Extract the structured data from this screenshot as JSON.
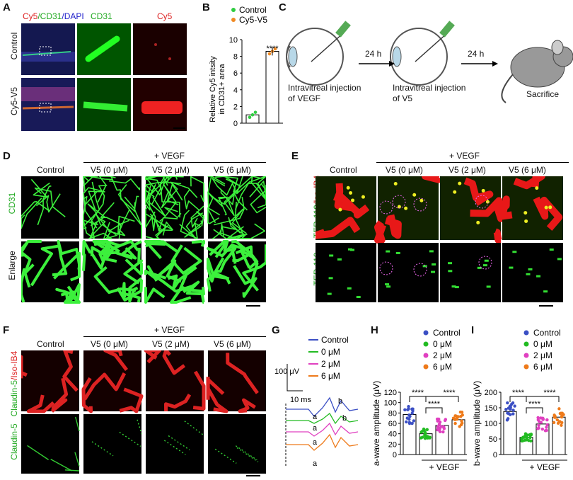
{
  "panelA": {
    "letter": "A",
    "header1": "Cy5",
    "header2": "/CD31",
    "header3": "/DAPI",
    "col2": "CD31",
    "col3": "Cy5",
    "row1": "Control",
    "row2": "Cy5-V5"
  },
  "panelB": {
    "letter": "B",
    "legend": [
      "Control",
      "Cy5-V5"
    ],
    "ylabel": "Relative Cy5 intsity\nin CD31+ area",
    "ylabel1": "Relative Cy5 intsity",
    "ylabel2": "in CD31+ area",
    "sig": "****"
  },
  "panelC": {
    "letter": "C",
    "step1a": "Intravitreal injection",
    "step1b": "of VEGF",
    "step2a": "Intravitreal injection",
    "step2b": "of V5",
    "arrow1": "24 h",
    "arrow2": "24 h",
    "final": "Sacrifice"
  },
  "panelD": {
    "letter": "D",
    "vegf": "+ VEGF",
    "cols": [
      "Control",
      "V5 (0 μM)",
      "V5 (2 μM)",
      "V5 (6 μM)"
    ],
    "row1": "CD31",
    "row2": "Enlarge"
  },
  "panelE": {
    "letter": "E",
    "vegf": "+ VEGF",
    "cols": [
      "Control",
      "V5 (0 μM)",
      "V5 (2 μM)",
      "V5 (6 μM)"
    ],
    "row1a": "TER-119",
    "row1b": "/Iso-IB4",
    "row2": "TER-119"
  },
  "panelF": {
    "letter": "F",
    "vegf": "+ VEGF",
    "cols": [
      "Control",
      "V5 (0 μM)",
      "V5 (2 μM)",
      "V5 (6 μM)"
    ],
    "row1a": "Claudin-5",
    "row1b": "/Iso-IB4",
    "row2": "Claudin-5"
  },
  "panelG": {
    "letter": "G",
    "legend": [
      "Control",
      "0 μM",
      "2 μM",
      "6 μM"
    ],
    "scaleV": "100 μV",
    "scaleT": "10 ms",
    "a": "a",
    "b": "b"
  },
  "panelH": {
    "letter": "H",
    "legend": [
      "Control",
      "0 μM",
      "2 μM",
      "6 μM"
    ],
    "ylabel": "a-wave amplitude (μV)",
    "xlabel": "+ VEGF",
    "sig": "****"
  },
  "panelI": {
    "letter": "I",
    "legend": [
      "Control",
      "0 μM",
      "2 μM",
      "6 μM"
    ],
    "ylabel": "b-wave amplitude (μV)",
    "xlabel": "+ VEGF",
    "sig": "****"
  },
  "colors": {
    "control": "#3b4fc4",
    "c0": "#22bb22",
    "c2": "#e040c0",
    "c6": "#ee7a1a",
    "cy5": "#2ecc40",
    "cy5v5": "#f08a24"
  },
  "chart_data": [
    {
      "type": "bar",
      "categories": [
        "Control",
        "Cy5-V5"
      ],
      "values": [
        1.0,
        8.6
      ],
      "ylim": [
        0,
        10
      ],
      "yticks": [
        0,
        2,
        4,
        6,
        8,
        10
      ],
      "ylabel": "Relative Cy5 intsity in CD31+ area"
    },
    {
      "type": "bar",
      "categories": [
        "Control",
        "0 μM",
        "2 μM",
        "6 μM"
      ],
      "values": [
        77,
        40,
        56,
        67
      ],
      "ylim": [
        0,
        120
      ],
      "yticks": [
        0,
        20,
        40,
        60,
        80,
        100,
        120
      ],
      "ylabel": "a-wave amplitude (μV)"
    },
    {
      "type": "bar",
      "categories": [
        "Control",
        "0 μM",
        "2 μM",
        "6 μM"
      ],
      "values": [
        138,
        55,
        98,
        120
      ],
      "ylim": [
        0,
        200
      ],
      "yticks": [
        0,
        50,
        100,
        150,
        200
      ],
      "ylabel": "b-wave amplitude (μV)"
    }
  ]
}
